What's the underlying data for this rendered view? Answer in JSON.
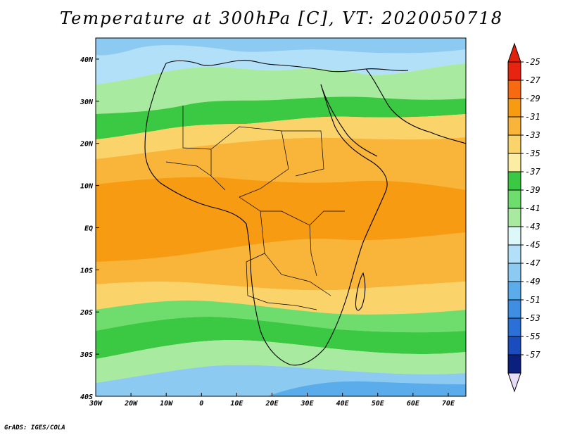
{
  "title": "Temperature at 300hPa [C], VT: 2020050718",
  "credit": "GrADS: IGES/COLA",
  "map": {
    "lon_range": [
      -30,
      75
    ],
    "lat_range": [
      -40,
      45
    ],
    "lon_ticks": [
      {
        "value": -30,
        "label": "30W"
      },
      {
        "value": -20,
        "label": "20W"
      },
      {
        "value": -10,
        "label": "10W"
      },
      {
        "value": 0,
        "label": "0"
      },
      {
        "value": 10,
        "label": "10E"
      },
      {
        "value": 20,
        "label": "20E"
      },
      {
        "value": 30,
        "label": "30E"
      },
      {
        "value": 40,
        "label": "40E"
      },
      {
        "value": 50,
        "label": "50E"
      },
      {
        "value": 60,
        "label": "60E"
      },
      {
        "value": 70,
        "label": "70E"
      }
    ],
    "lat_ticks": [
      {
        "value": 40,
        "label": "40N"
      },
      {
        "value": 30,
        "label": "30N"
      },
      {
        "value": 20,
        "label": "20N"
      },
      {
        "value": 10,
        "label": "10N"
      },
      {
        "value": 0,
        "label": "EQ"
      },
      {
        "value": -10,
        "label": "10S"
      },
      {
        "value": -20,
        "label": "20S"
      },
      {
        "value": -30,
        "label": "30S"
      },
      {
        "value": -40,
        "label": "40S"
      }
    ]
  },
  "colorbar": {
    "labels": [
      "-25",
      "-27",
      "-29",
      "-31",
      "-33",
      "-35",
      "-37",
      "-39",
      "-41",
      "-43",
      "-45",
      "-47",
      "-49",
      "-51",
      "-53",
      "-55",
      "-57"
    ],
    "colors": [
      "#e8230f",
      "#f76a0f",
      "#f79b12",
      "#f8b53a",
      "#fad46a",
      "#fbeea3",
      "#3bc843",
      "#6fdc6e",
      "#a8eba0",
      "#dcf8f8",
      "#b2e0f8",
      "#8ccaf2",
      "#5aacea",
      "#3f8ee2",
      "#2a70d6",
      "#1a4cbe",
      "#0b1f7e"
    ],
    "top_arrow_color": "#e0220c",
    "bottom_arrow_color": "#e6dcf8"
  }
}
